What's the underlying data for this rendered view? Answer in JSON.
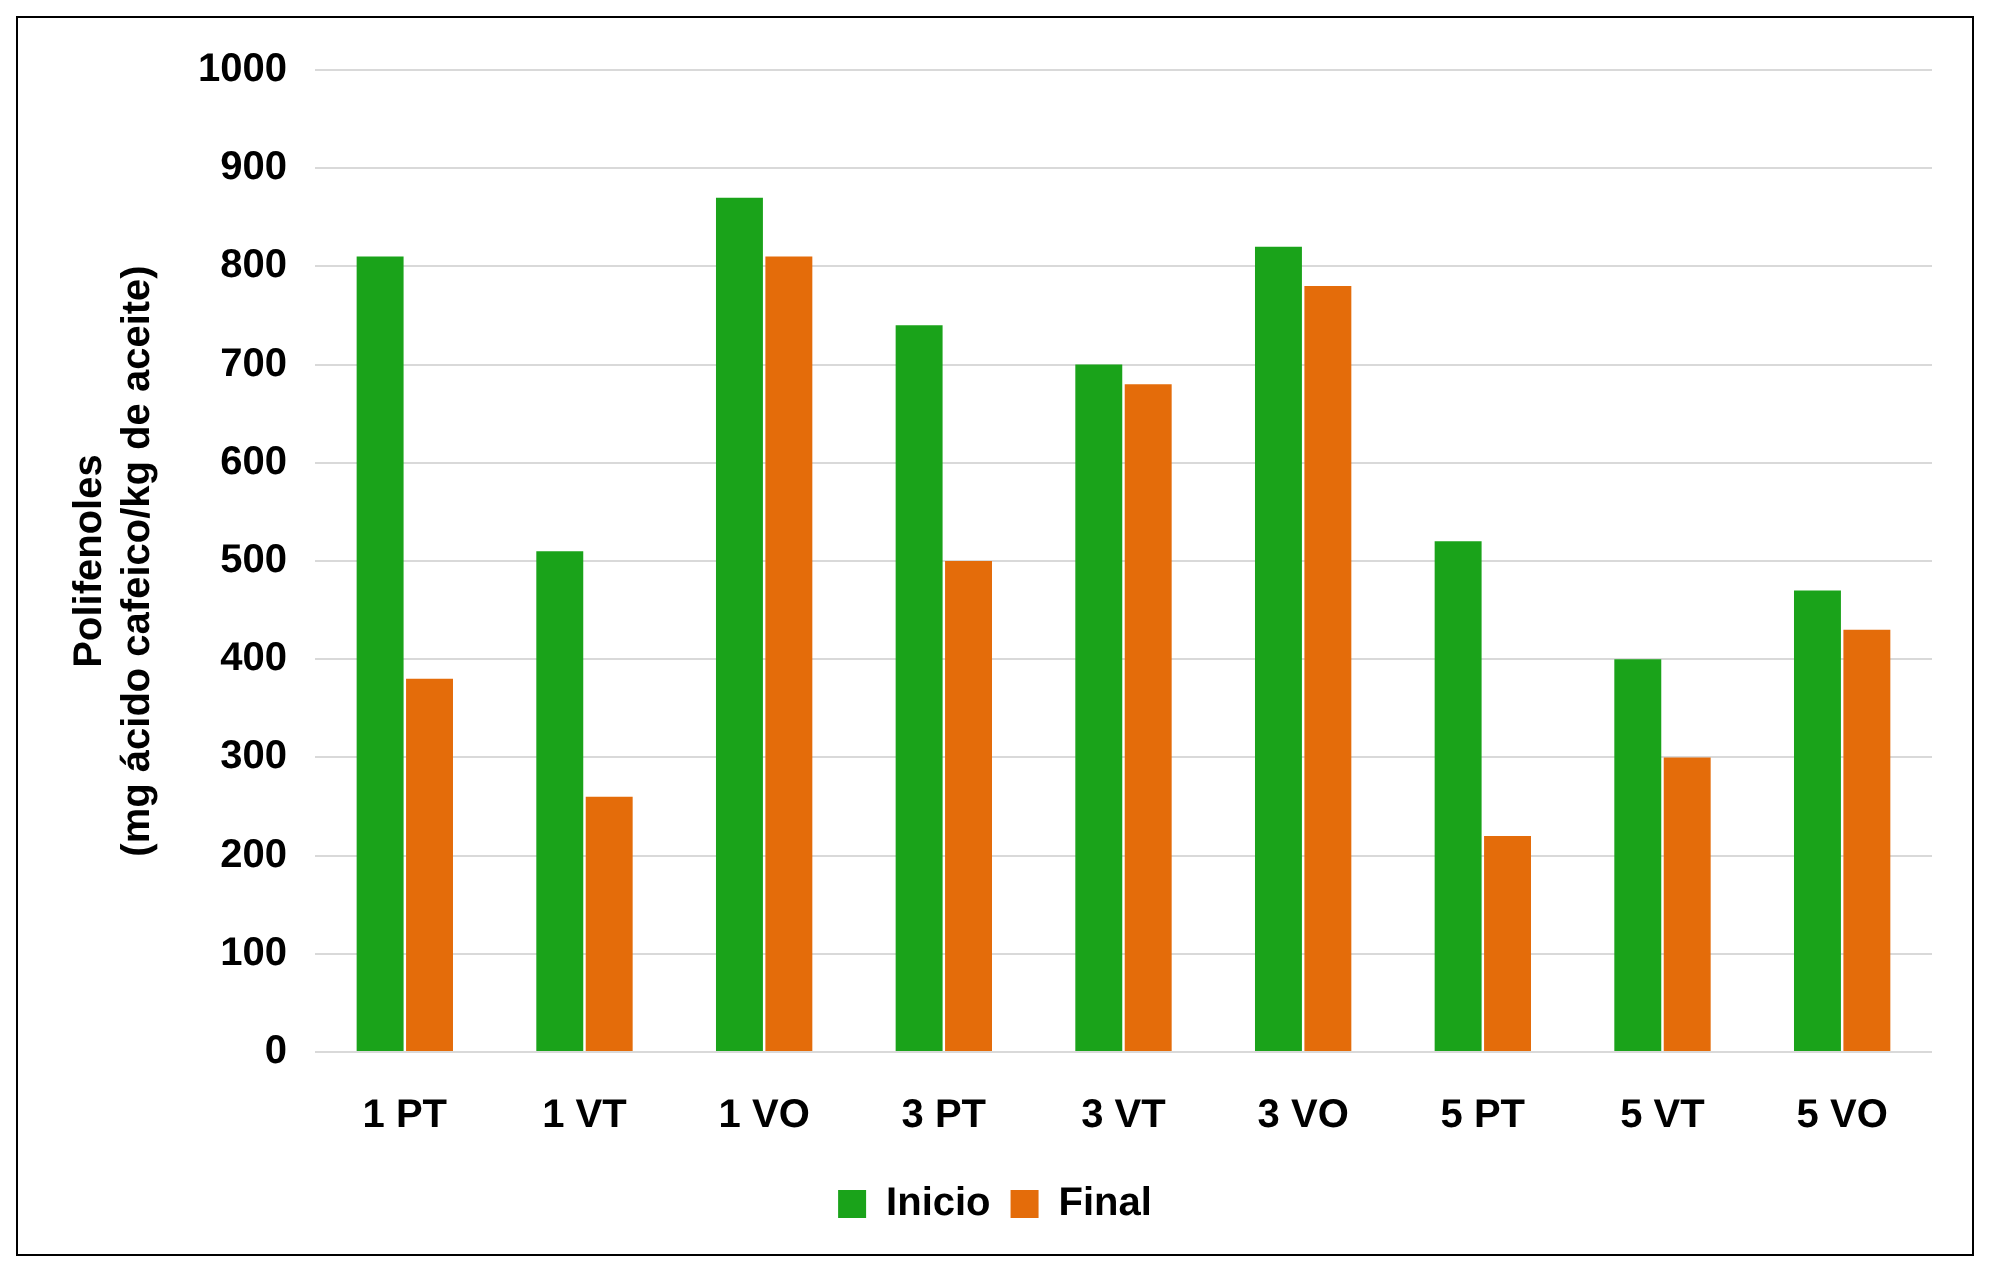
{
  "chart_data": {
    "type": "bar",
    "ylabel": "Polifenoles\n(mg ácido cafeico/kg de aceite)",
    "categories": [
      "1 PT",
      "1 VT",
      "1 VO",
      "3 PT",
      "3 VT",
      "3 VO",
      "5 PT",
      "5 VT",
      "5 VO"
    ],
    "series": [
      {
        "name": "Inicio",
        "color": "#1aa31a",
        "values": [
          810,
          510,
          870,
          740,
          700,
          820,
          520,
          400,
          470
        ]
      },
      {
        "name": "Final",
        "color": "#e46c0a",
        "values": [
          380,
          260,
          810,
          500,
          680,
          780,
          220,
          300,
          430
        ]
      }
    ],
    "ylim": [
      0,
      1000
    ],
    "yticks": [
      0,
      100,
      200,
      300,
      400,
      500,
      600,
      700,
      800,
      900,
      1000
    ],
    "grid": "y",
    "legend": "bottom"
  }
}
